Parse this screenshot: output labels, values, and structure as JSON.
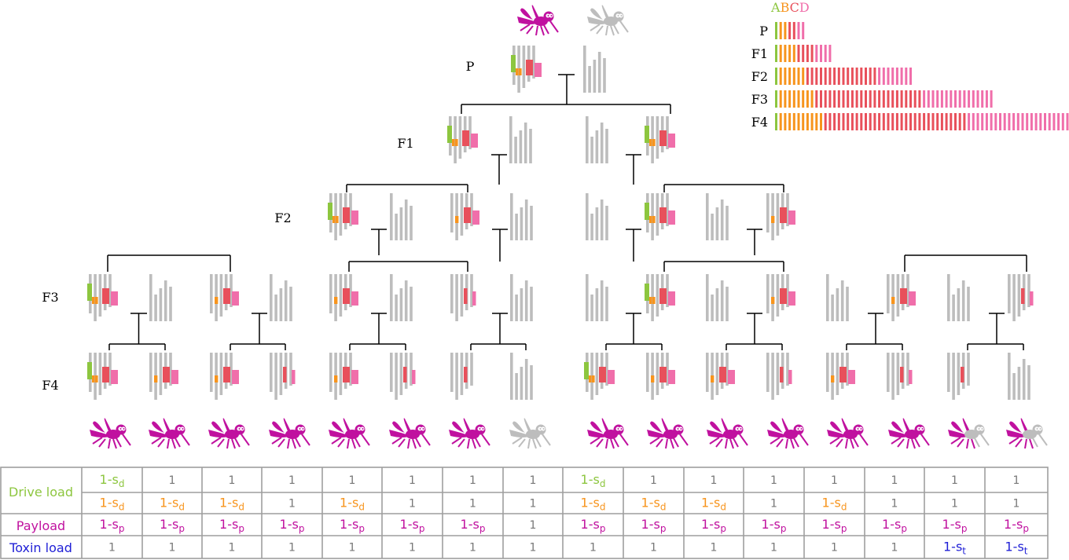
{
  "colors": {
    "A": "#8dc63f",
    "B": "#f7941d",
    "C": "#e8505b",
    "D": "#f06eaa",
    "magenta": "#c0119f",
    "grey": "#bdbdbd",
    "blue": "#1f1fd6"
  },
  "legend": {
    "letters": [
      "A",
      "B",
      "C",
      "D"
    ],
    "rows": [
      {
        "label": "P",
        "counts": [
          1,
          2,
          2,
          2
        ]
      },
      {
        "label": "F1",
        "counts": [
          1,
          4,
          4,
          4
        ]
      },
      {
        "label": "F2",
        "counts": [
          1,
          6,
          16,
          8
        ]
      },
      {
        "label": "F3",
        "counts": [
          1,
          8,
          24,
          16
        ]
      },
      {
        "label": "F4",
        "counts": [
          1,
          10,
          32,
          32
        ]
      }
    ]
  },
  "generation_labels": [
    "P",
    "F1",
    "F2",
    "F3",
    "F4"
  ],
  "mosquito_icons": [
    "mosquito-icon",
    "mosquito-icon",
    "mosquito-icon",
    "mosquito-icon",
    "mosquito-icon",
    "mosquito-icon",
    "mosquito-icon",
    "mosquito-icon",
    "mosquito-icon",
    "mosquito-icon",
    "mosquito-icon",
    "mosquito-icon",
    "mosquito-icon",
    "mosquito-icon",
    "mosquito-icon",
    "mosquito-icon"
  ],
  "offspring_phenotype": [
    "magenta",
    "magenta",
    "magenta",
    "magenta",
    "magenta",
    "magenta",
    "magenta",
    "grey",
    "magenta",
    "magenta",
    "magenta",
    "magenta",
    "magenta",
    "magenta",
    "half",
    "half"
  ],
  "table": {
    "row_labels": [
      "Drive load",
      "Payload",
      "Toxin load"
    ],
    "drive_row1": [
      {
        "t": "1-s",
        "s": "d",
        "c": "A"
      },
      {
        "t": "1"
      },
      {
        "t": "1"
      },
      {
        "t": "1"
      },
      {
        "t": "1"
      },
      {
        "t": "1"
      },
      {
        "t": "1"
      },
      {
        "t": "1"
      },
      {
        "t": "1-s",
        "s": "d",
        "c": "A"
      },
      {
        "t": "1"
      },
      {
        "t": "1"
      },
      {
        "t": "1"
      },
      {
        "t": "1"
      },
      {
        "t": "1"
      },
      {
        "t": "1"
      },
      {
        "t": "1"
      }
    ],
    "drive_row2": [
      {
        "t": "1-s",
        "s": "d",
        "c": "B"
      },
      {
        "t": "1-s",
        "s": "d",
        "c": "B"
      },
      {
        "t": "1-s",
        "s": "d",
        "c": "B"
      },
      {
        "t": "1"
      },
      {
        "t": "1-s",
        "s": "d",
        "c": "B"
      },
      {
        "t": "1"
      },
      {
        "t": "1"
      },
      {
        "t": "1"
      },
      {
        "t": "1-s",
        "s": "d",
        "c": "B"
      },
      {
        "t": "1-s",
        "s": "d",
        "c": "B"
      },
      {
        "t": "1-s",
        "s": "d",
        "c": "B"
      },
      {
        "t": "1"
      },
      {
        "t": "1-s",
        "s": "d",
        "c": "B"
      },
      {
        "t": "1"
      },
      {
        "t": "1"
      },
      {
        "t": "1"
      }
    ],
    "payload_row": [
      {
        "t": "1-s",
        "s": "p",
        "c": "magenta"
      },
      {
        "t": "1-s",
        "s": "p",
        "c": "magenta"
      },
      {
        "t": "1-s",
        "s": "p",
        "c": "magenta"
      },
      {
        "t": "1-s",
        "s": "p",
        "c": "magenta"
      },
      {
        "t": "1-s",
        "s": "p",
        "c": "magenta"
      },
      {
        "t": "1-s",
        "s": "p",
        "c": "magenta"
      },
      {
        "t": "1-s",
        "s": "p",
        "c": "magenta"
      },
      {
        "t": "1"
      },
      {
        "t": "1-s",
        "s": "p",
        "c": "magenta"
      },
      {
        "t": "1-s",
        "s": "p",
        "c": "magenta"
      },
      {
        "t": "1-s",
        "s": "p",
        "c": "magenta"
      },
      {
        "t": "1-s",
        "s": "p",
        "c": "magenta"
      },
      {
        "t": "1-s",
        "s": "p",
        "c": "magenta"
      },
      {
        "t": "1-s",
        "s": "p",
        "c": "magenta"
      },
      {
        "t": "1-s",
        "s": "p",
        "c": "magenta"
      },
      {
        "t": "1-s",
        "s": "p",
        "c": "magenta"
      }
    ],
    "toxin_row": [
      {
        "t": "1"
      },
      {
        "t": "1"
      },
      {
        "t": "1"
      },
      {
        "t": "1"
      },
      {
        "t": "1"
      },
      {
        "t": "1"
      },
      {
        "t": "1"
      },
      {
        "t": "1"
      },
      {
        "t": "1"
      },
      {
        "t": "1"
      },
      {
        "t": "1"
      },
      {
        "t": "1"
      },
      {
        "t": "1"
      },
      {
        "t": "1"
      },
      {
        "t": "1-s",
        "s": "t",
        "c": "blue"
      },
      {
        "t": "1-s",
        "s": "t",
        "c": "blue"
      }
    ]
  }
}
